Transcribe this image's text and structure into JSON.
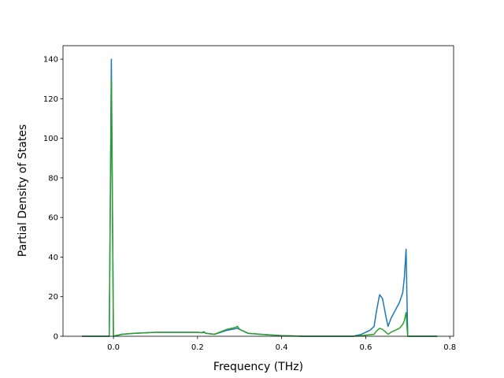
{
  "chart_data": {
    "type": "line",
    "xlabel": "Frequency (THz)",
    "ylabel": "Partial Density of States",
    "x": [
      -0.075,
      -0.01,
      -0.005,
      0.0,
      0.02,
      0.05,
      0.1,
      0.15,
      0.2,
      0.21,
      0.215,
      0.22,
      0.24,
      0.27,
      0.29,
      0.295,
      0.3,
      0.32,
      0.35,
      0.4,
      0.45,
      0.57,
      0.59,
      0.61,
      0.62,
      0.625,
      0.633,
      0.64,
      0.648,
      0.653,
      0.66,
      0.67,
      0.68,
      0.688,
      0.692,
      0.696,
      0.698,
      0.7,
      0.77
    ],
    "series": [
      {
        "color": "#1f77b4",
        "values": [
          0,
          0,
          140,
          0,
          1,
          1.5,
          2,
          2,
          2,
          1.8,
          2,
          1.5,
          1,
          3,
          3.8,
          4,
          3.5,
          1.5,
          1,
          0.3,
          0,
          0,
          1,
          3,
          5,
          12,
          21,
          19,
          10,
          5,
          9,
          13,
          17,
          22,
          30,
          44,
          20,
          0,
          0
        ]
      },
      {
        "color": "#2ca02c",
        "values": [
          0,
          0,
          130,
          0,
          1,
          1.5,
          2,
          2,
          2,
          1.8,
          2.3,
          1.5,
          1,
          3.5,
          4.5,
          5,
          3.5,
          1.5,
          1,
          0.3,
          0,
          0,
          0.3,
          0.8,
          1,
          2.5,
          4,
          3.5,
          2,
          1,
          2,
          3,
          4,
          6,
          8,
          12,
          5,
          0,
          0
        ]
      }
    ],
    "xlim": [
      -0.12,
      0.809
    ],
    "xticks": [
      {
        "value": 0.0,
        "label": "0.0"
      },
      0.2,
      0.4,
      0.6,
      0.8
    ],
    "ylim": [
      0,
      146.8
    ],
    "yticks": [
      0,
      20,
      40,
      60,
      80,
      100,
      120,
      140
    ]
  }
}
